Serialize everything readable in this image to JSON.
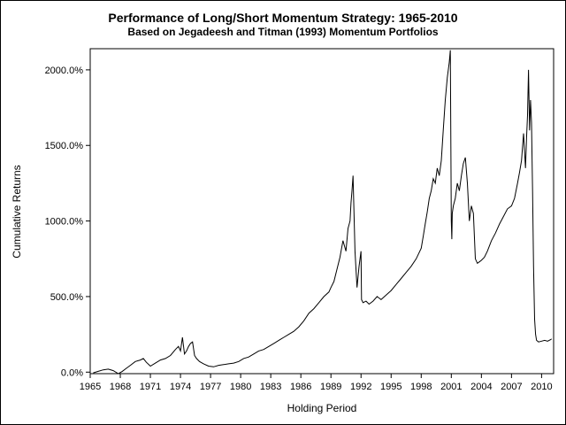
{
  "chart_data": {
    "type": "line",
    "title": "Performance of Long/Short Momentum Strategy: 1965-2010",
    "subtitle": "Based on Jegadeesh and Titman (1993) Momentum Portfolios",
    "xlabel": "Holding Period",
    "ylabel": "Cumulative Returns",
    "xlim": [
      1965,
      2011.2
    ],
    "ylim": [
      -10,
      2140
    ],
    "x_ticks": [
      1965,
      1968,
      1971,
      1974,
      1977,
      1980,
      1983,
      1986,
      1989,
      1992,
      1995,
      1998,
      2001,
      2004,
      2007,
      2010
    ],
    "y_ticks": [
      0,
      500,
      1000,
      1500,
      2000
    ],
    "y_tick_labels": [
      "0.0%",
      "500.0%",
      "1000.0%",
      "1500.0%",
      "2000.0%"
    ],
    "grid": false,
    "line_color": "#000000",
    "series": [
      {
        "x": [
          1965.3,
          1965.8,
          1966.3,
          1966.8,
          1967.3,
          1967.8,
          1968.2,
          1968.6,
          1969.0,
          1969.5,
          1970.0,
          1970.3,
          1970.6,
          1971.0,
          1971.5,
          1972.0,
          1972.5,
          1973.0,
          1973.5,
          1973.8,
          1974.0,
          1974.2,
          1974.4,
          1974.6,
          1974.8,
          1975.0,
          1975.2,
          1975.4,
          1975.6,
          1975.9,
          1976.3,
          1976.8,
          1977.3,
          1977.8,
          1978.3,
          1978.8,
          1979.3,
          1979.8,
          1980.3,
          1980.8,
          1981.3,
          1981.8,
          1982.3,
          1982.8,
          1983.3,
          1983.8,
          1984.3,
          1984.8,
          1985.3,
          1985.8,
          1986.3,
          1986.8,
          1987.3,
          1987.8,
          1988.3,
          1988.8,
          1989.0,
          1989.3,
          1989.6,
          1989.9,
          1990.2,
          1990.5,
          1990.7,
          1990.9,
          1991.0,
          1991.1,
          1991.2,
          1991.4,
          1991.6,
          1991.8,
          1991.9,
          1992.0,
          1992.05,
          1992.2,
          1992.5,
          1992.8,
          1993.2,
          1993.6,
          1994.0,
          1994.5,
          1995.0,
          1995.5,
          1996.0,
          1996.5,
          1997.0,
          1997.5,
          1998.0,
          1998.2,
          1998.4,
          1998.6,
          1998.8,
          1999.0,
          1999.2,
          1999.4,
          1999.6,
          1999.8,
          2000.0,
          2000.2,
          2000.4,
          2000.6,
          2000.8,
          2000.9,
          2001.0,
          2001.05,
          2001.1,
          2001.2,
          2001.4,
          2001.6,
          2001.8,
          2002.0,
          2002.2,
          2002.4,
          2002.6,
          2002.8,
          2003.0,
          2003.2,
          2003.4,
          2003.6,
          2003.8,
          2004.0,
          2004.3,
          2004.6,
          2005.0,
          2005.4,
          2005.8,
          2006.2,
          2006.6,
          2007.0,
          2007.3,
          2007.6,
          2007.8,
          2008.0,
          2008.2,
          2008.4,
          2008.5,
          2008.6,
          2008.7,
          2008.8,
          2008.9,
          2009.0,
          2009.1,
          2009.2,
          2009.3,
          2009.4,
          2009.5,
          2009.7,
          2010.0,
          2010.3,
          2010.6,
          2010.9,
          2011.0
        ],
        "y": [
          -5,
          5,
          15,
          20,
          10,
          -10,
          5,
          25,
          45,
          70,
          80,
          90,
          65,
          40,
          60,
          80,
          90,
          110,
          150,
          170,
          140,
          230,
          120,
          140,
          170,
          190,
          200,
          110,
          90,
          70,
          55,
          40,
          35,
          45,
          50,
          55,
          60,
          70,
          90,
          100,
          120,
          140,
          150,
          170,
          190,
          210,
          230,
          250,
          270,
          300,
          340,
          390,
          420,
          460,
          500,
          530,
          560,
          600,
          680,
          760,
          870,
          800,
          950,
          1000,
          1120,
          1200,
          1300,
          800,
          560,
          700,
          750,
          800,
          480,
          460,
          470,
          450,
          470,
          500,
          480,
          510,
          540,
          580,
          620,
          660,
          700,
          750,
          820,
          900,
          980,
          1060,
          1150,
          1200,
          1280,
          1250,
          1350,
          1300,
          1400,
          1600,
          1800,
          1950,
          2050,
          2130,
          1000,
          880,
          1050,
          1100,
          1150,
          1250,
          1200,
          1300,
          1380,
          1420,
          1250,
          1000,
          1100,
          1050,
          750,
          720,
          730,
          740,
          760,
          800,
          870,
          920,
          980,
          1030,
          1080,
          1100,
          1150,
          1250,
          1320,
          1400,
          1580,
          1350,
          1550,
          1700,
          2000,
          1600,
          1800,
          1650,
          1200,
          700,
          350,
          250,
          210,
          200,
          205,
          210,
          205,
          215,
          220
        ]
      }
    ]
  }
}
